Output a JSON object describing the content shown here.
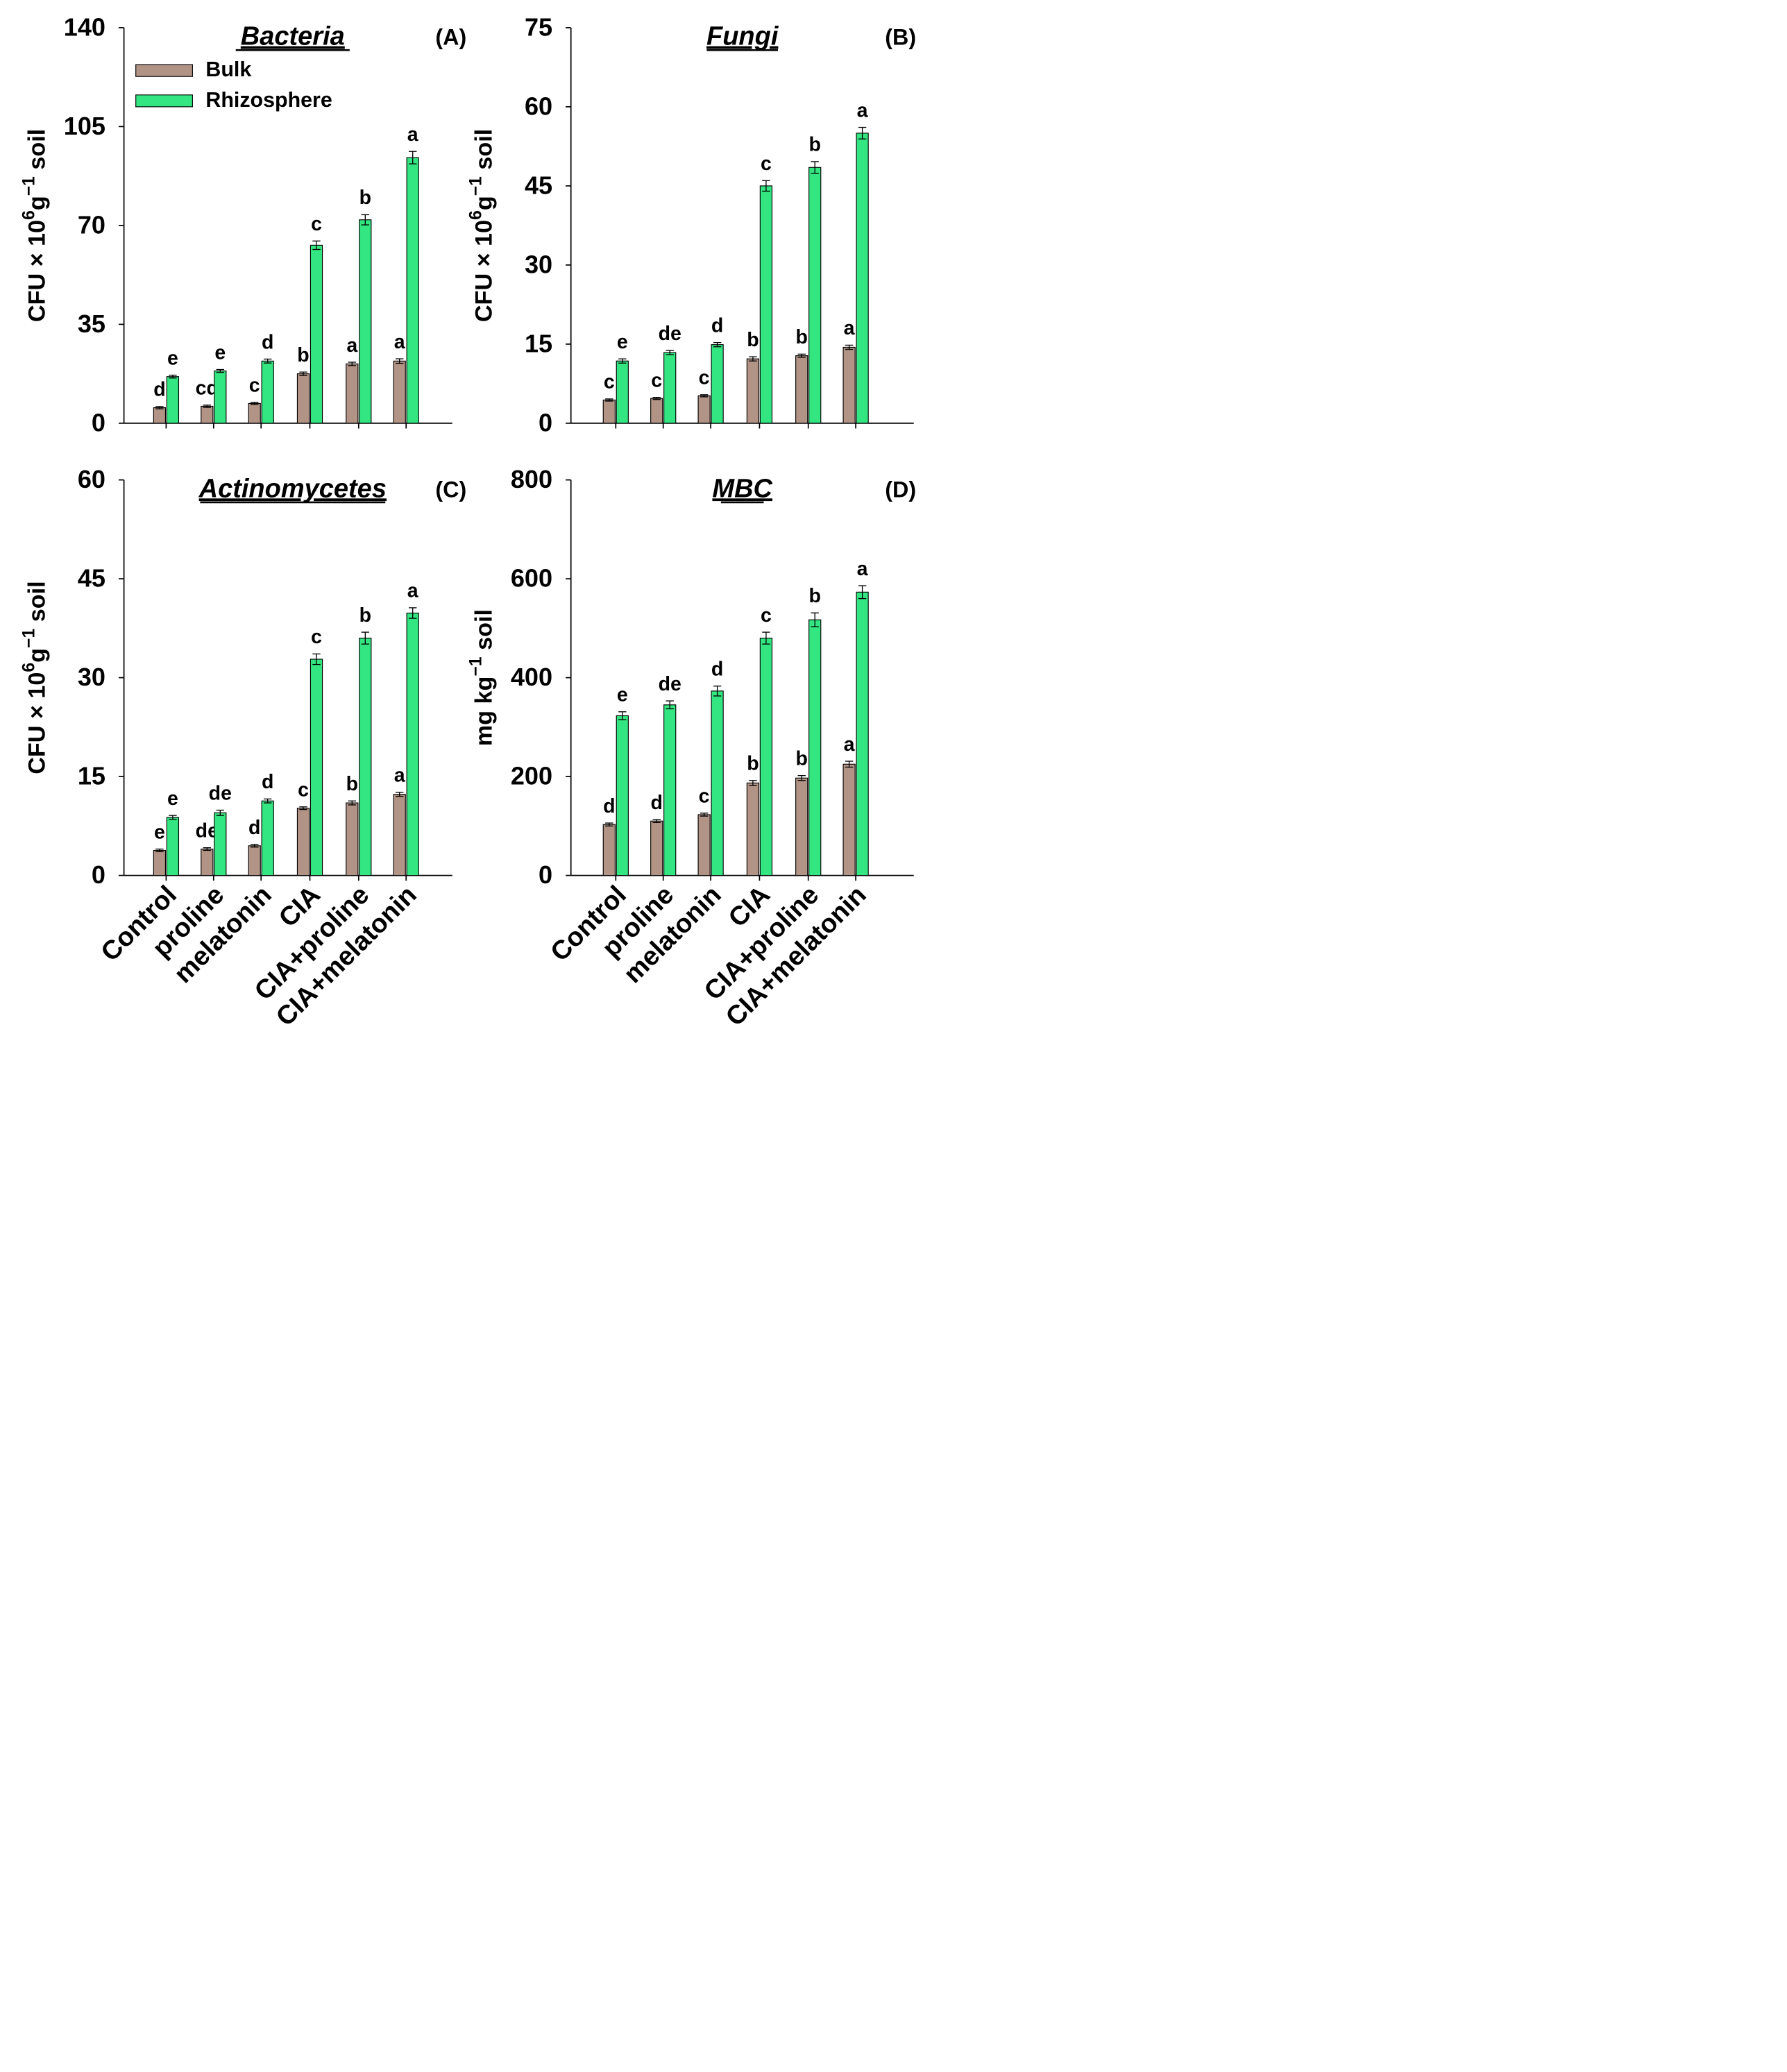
{
  "colors": {
    "bulk": "#B29486",
    "rhizosphere": "#33E681",
    "axis": "#000000"
  },
  "legend": {
    "items": [
      "Bulk",
      "Rhizosphere"
    ]
  },
  "xaxis": {
    "categories": [
      "Control",
      "proline",
      "melatonin",
      "CIA",
      "CIA+proline",
      "CIA+melatonin"
    ]
  },
  "chart_data": [
    {
      "type": "bar",
      "panel": "(A)",
      "title": "Bacteria",
      "ylabel": {
        "main": "CFU × 10",
        "sup1": "6",
        "mid": "g",
        "sup2": "−1",
        "end": "soil"
      },
      "ylim": [
        0,
        140
      ],
      "yticks": [
        "0",
        "35",
        "70",
        "105",
        "140"
      ],
      "grid": false,
      "legend_position": "top-left",
      "categories": [
        "Control",
        "proline",
        "melatonin",
        "CIA",
        "CIA+proline",
        "CIA+melatonin"
      ],
      "series": [
        {
          "name": "Bulk",
          "values": [
            5.5,
            6,
            7,
            17.5,
            21,
            22
          ],
          "errors": [
            0.4,
            0.4,
            0.4,
            0.6,
            0.6,
            0.8
          ],
          "letters": [
            "d",
            "cd",
            "c",
            "b",
            "a",
            "a"
          ]
        },
        {
          "name": "Rhizosphere",
          "values": [
            16.5,
            18.5,
            22,
            63,
            72,
            94
          ],
          "errors": [
            0.5,
            0.5,
            0.7,
            1.5,
            1.8,
            2.2
          ],
          "letters": [
            "e",
            "e",
            "d",
            "c",
            "b",
            "a"
          ]
        }
      ]
    },
    {
      "type": "bar",
      "panel": "(B)",
      "title": "Fungi",
      "ylabel": {
        "main": "CFU × 10",
        "sup1": "6",
        "mid": "g",
        "sup2": "−1",
        "end": "soil"
      },
      "ylim": [
        0,
        75
      ],
      "yticks": [
        "0",
        "15",
        "30",
        "45",
        "60",
        "75"
      ],
      "grid": false,
      "categories": [
        "Control",
        "proline",
        "melatonin",
        "CIA",
        "CIA+proline",
        "CIA+melatonin"
      ],
      "series": [
        {
          "name": "Bulk",
          "values": [
            4.4,
            4.7,
            5.2,
            12.2,
            12.8,
            14.4
          ],
          "errors": [
            0.2,
            0.2,
            0.2,
            0.4,
            0.3,
            0.4
          ],
          "letters": [
            "c",
            "c",
            "c",
            "b",
            "b",
            "a"
          ]
        },
        {
          "name": "Rhizosphere",
          "values": [
            11.8,
            13.4,
            14.9,
            45,
            48.5,
            55
          ],
          "errors": [
            0.4,
            0.4,
            0.4,
            1,
            1.1,
            1.1
          ],
          "letters": [
            "e",
            "de",
            "d",
            "c",
            "b",
            "a"
          ]
        }
      ]
    },
    {
      "type": "bar",
      "panel": "(C)",
      "title": "Actinomycetes",
      "ylabel": {
        "main": "CFU × 10",
        "sup1": "6",
        "mid": "g",
        "sup2": "−1",
        "end": "soil"
      },
      "ylim": [
        0,
        60
      ],
      "yticks": [
        "0",
        "15",
        "30",
        "45",
        "60"
      ],
      "grid": false,
      "categories": [
        "Control",
        "proline",
        "melatonin",
        "CIA",
        "CIA+proline",
        "CIA+melatonin"
      ],
      "series": [
        {
          "name": "Bulk",
          "values": [
            3.8,
            4,
            4.5,
            10.2,
            11,
            12.3
          ],
          "errors": [
            0.2,
            0.2,
            0.2,
            0.2,
            0.3,
            0.3
          ],
          "letters": [
            "e",
            "de",
            "d",
            "c",
            "b",
            "a"
          ]
        },
        {
          "name": "Rhizosphere",
          "values": [
            8.8,
            9.5,
            11.3,
            32.8,
            36,
            39.8
          ],
          "errors": [
            0.3,
            0.4,
            0.3,
            0.8,
            0.9,
            0.8
          ],
          "letters": [
            "e",
            "de",
            "d",
            "c",
            "b",
            "a"
          ]
        }
      ]
    },
    {
      "type": "bar",
      "panel": "(D)",
      "title": "MBC",
      "ylabel": {
        "main": "mg kg",
        "sup1": "",
        "mid": "",
        "sup2": "−1",
        "end": "soil"
      },
      "ylim": [
        0,
        800
      ],
      "yticks": [
        "0",
        "200",
        "400",
        "600",
        "800"
      ],
      "grid": false,
      "categories": [
        "Control",
        "proline",
        "melatonin",
        "CIA",
        "CIA+proline",
        "CIA+melatonin"
      ],
      "series": [
        {
          "name": "Bulk",
          "values": [
            103,
            110,
            123,
            187,
            197,
            225
          ],
          "errors": [
            3,
            3,
            3,
            5,
            5,
            6
          ],
          "letters": [
            "d",
            "d",
            "c",
            "b",
            "b",
            "a"
          ]
        },
        {
          "name": "Rhizosphere",
          "values": [
            323,
            345,
            373,
            480,
            517,
            573
          ],
          "errors": [
            8,
            8,
            10,
            12,
            14,
            13
          ],
          "letters": [
            "e",
            "de",
            "d",
            "c",
            "b",
            "a"
          ]
        }
      ]
    }
  ]
}
